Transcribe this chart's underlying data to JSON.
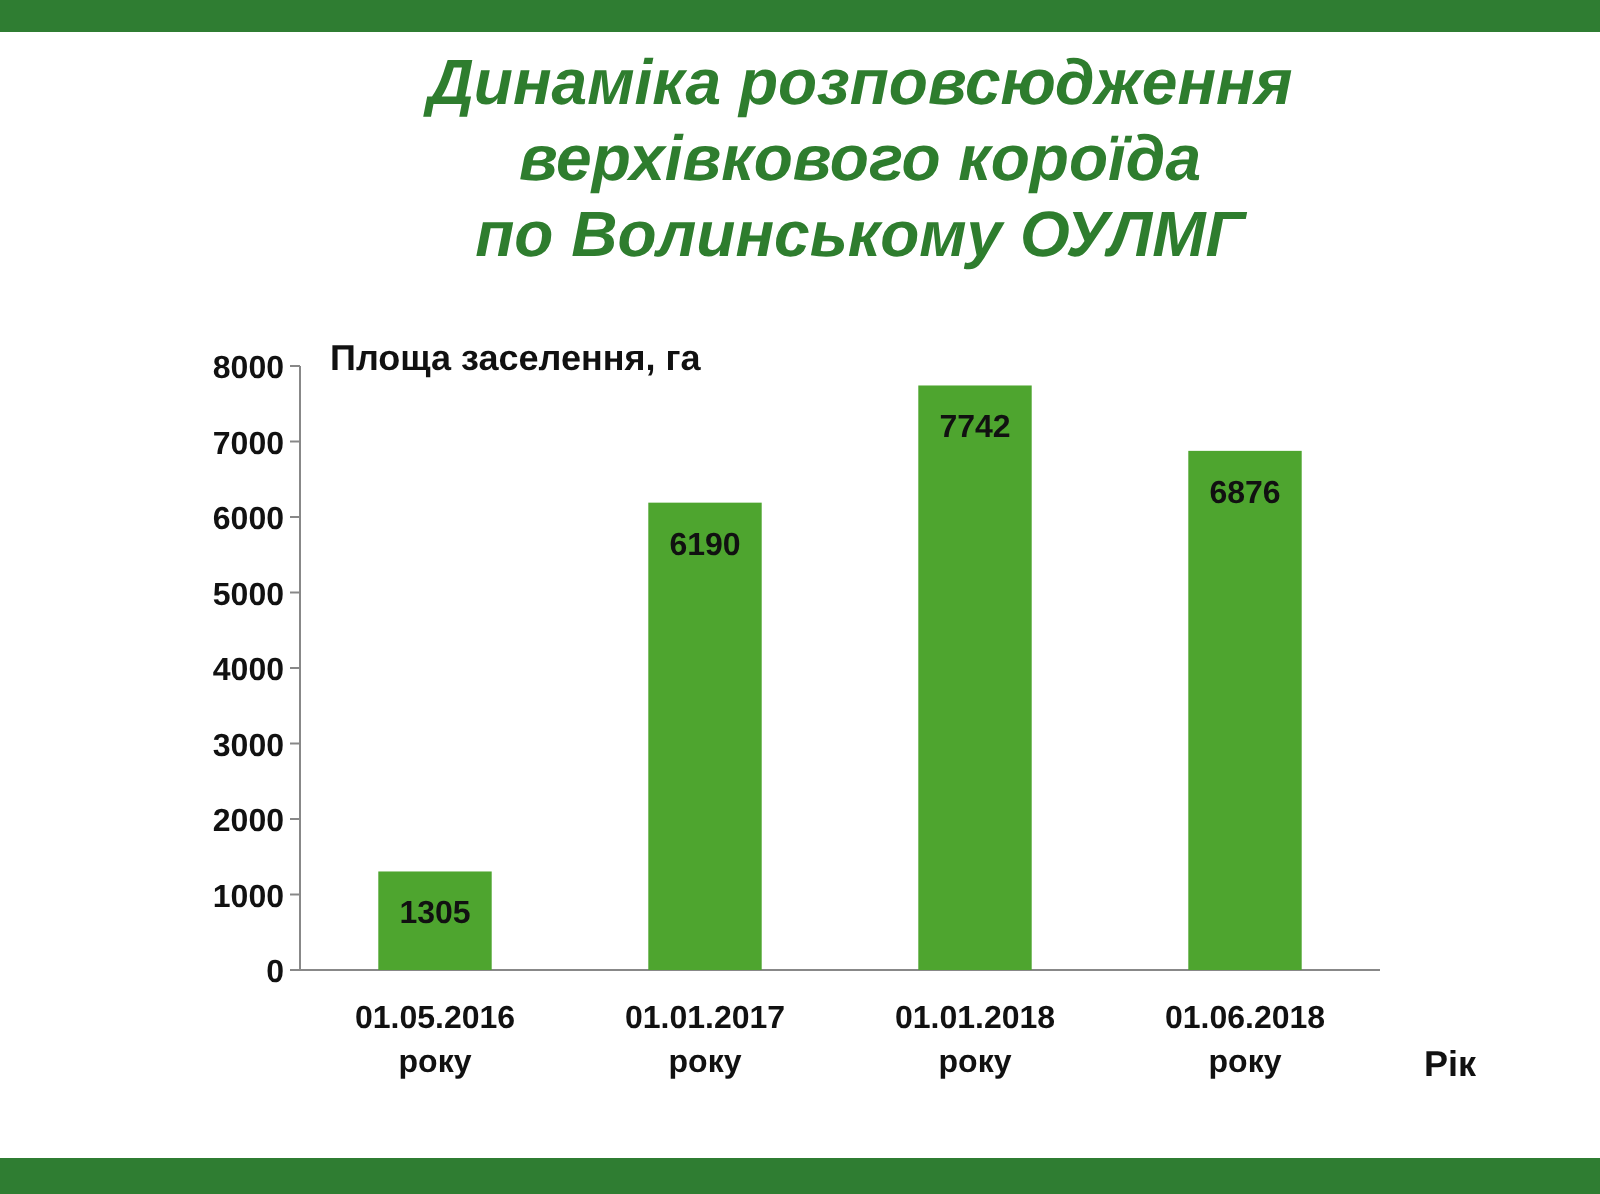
{
  "chart_data": {
    "type": "bar",
    "title": "Динаміка розповсюдження\nверхівкового короїда\nпо Волинському ОУЛМГ",
    "ylabel": "Площа заселення, га",
    "xlabel": "Рік",
    "categories": [
      "01.05.2016 року",
      "01.01.2017 року",
      "01.01.2018 року",
      "01.06.2018 року"
    ],
    "values": [
      1305,
      6190,
      7742,
      6876
    ],
    "color": "#4ea52f",
    "ylim": [
      0,
      8000
    ],
    "yticks": [
      0,
      1000,
      2000,
      3000,
      4000,
      5000,
      6000,
      7000,
      8000
    ],
    "data_labels": true
  }
}
